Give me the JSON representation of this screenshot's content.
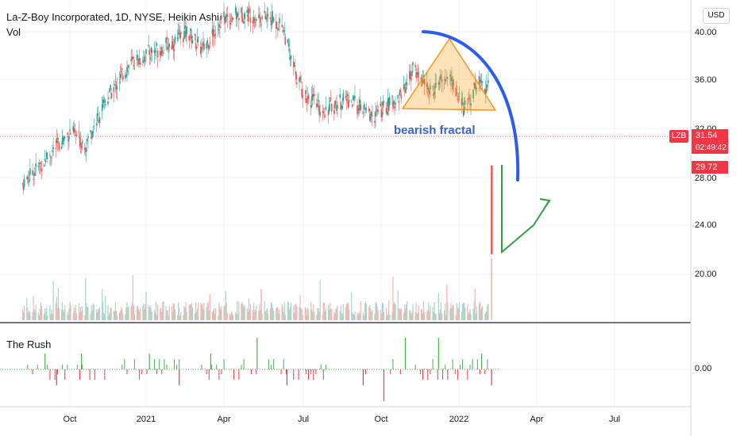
{
  "header": {
    "title": "La-Z-Boy Incorporated, 1D, NYSE, Heikin Ashi",
    "volume_label": "Vol",
    "currency": "USD"
  },
  "indicator": {
    "name": "The Rush",
    "value_label": "0.00"
  },
  "annotation": {
    "text": "bearish fractal"
  },
  "price_scale": {
    "ticker": "LZB",
    "last_price": "31.54",
    "countdown": "02:49:42",
    "close_price": "29.72"
  },
  "colors": {
    "up": "#26a69a",
    "down": "#ef5350",
    "rush_up": "#4caf50",
    "rush_down": "#f23645",
    "arc": "#2962ff",
    "triangle": "#ff9800",
    "projection": "#43a047"
  },
  "chart_data": {
    "type": "candlestick",
    "x_ticks": [
      "Oct",
      "2021",
      "Apr",
      "Jul",
      "Oct",
      "2022",
      "Apr",
      "Jul"
    ],
    "y_ticks": [
      "40.00",
      "36.00",
      "32.00",
      "28.00",
      "24.00",
      "20.00"
    ],
    "ylim": [
      17.5,
      41.5
    ],
    "series": [
      {
        "keypoints": [
          [
            "2020-08-05",
            27.5
          ],
          [
            "2020-09-01",
            29.5
          ],
          [
            "2020-10-01",
            31.8
          ],
          [
            "2020-10-20",
            30.8
          ],
          [
            "2020-11-15",
            34.5
          ],
          [
            "2020-12-10",
            37.2
          ],
          [
            "2021-01-05",
            38.3
          ],
          [
            "2021-02-01",
            39.0
          ],
          [
            "2021-02-20",
            40.0
          ],
          [
            "2021-03-10",
            38.5
          ],
          [
            "2021-04-01",
            41.0
          ],
          [
            "2021-05-01",
            41.5
          ],
          [
            "2021-06-01",
            41.0
          ],
          [
            "2021-06-15",
            40.5
          ],
          [
            "2021-06-25",
            37.5
          ],
          [
            "2021-07-10",
            35.0
          ],
          [
            "2021-08-01",
            33.5
          ],
          [
            "2021-09-01",
            34.5
          ],
          [
            "2021-10-01",
            33.0
          ],
          [
            "2021-11-01",
            34.5
          ],
          [
            "2021-11-20",
            37.0
          ],
          [
            "2021-12-10",
            35.0
          ],
          [
            "2022-01-01",
            36.5
          ],
          [
            "2022-01-20",
            33.5
          ],
          [
            "2022-02-05",
            36.0
          ],
          [
            "2022-02-18",
            35.5
          ]
        ]
      }
    ],
    "rush": [
      {
        "date": "2020-09-01",
        "value": 1
      },
      {
        "date": "2020-09-15",
        "value": -1
      },
      {
        "date": "2020-10-15",
        "value": 1
      },
      {
        "date": "2021-01-05",
        "value": 1
      },
      {
        "date": "2021-02-10",
        "value": -1
      },
      {
        "date": "2021-03-20",
        "value": 1
      },
      {
        "date": "2021-05-15",
        "value": 2
      },
      {
        "date": "2021-06-20",
        "value": -1
      },
      {
        "date": "2021-09-20",
        "value": -1
      },
      {
        "date": "2021-10-15",
        "value": -2
      },
      {
        "date": "2021-11-10",
        "value": 2
      },
      {
        "date": "2021-12-20",
        "value": 2
      },
      {
        "date": "2022-02-10",
        "value": 1
      },
      {
        "date": "2022-02-22",
        "value": -1
      }
    ],
    "volume_spikes": [
      {
        "date": "2021-05-20",
        "value": 3
      },
      {
        "date": "2022-02-22",
        "value": 6
      }
    ],
    "last_bar": {
      "date": "2022-02-22",
      "open": 29.0,
      "close": 21.7
    }
  }
}
